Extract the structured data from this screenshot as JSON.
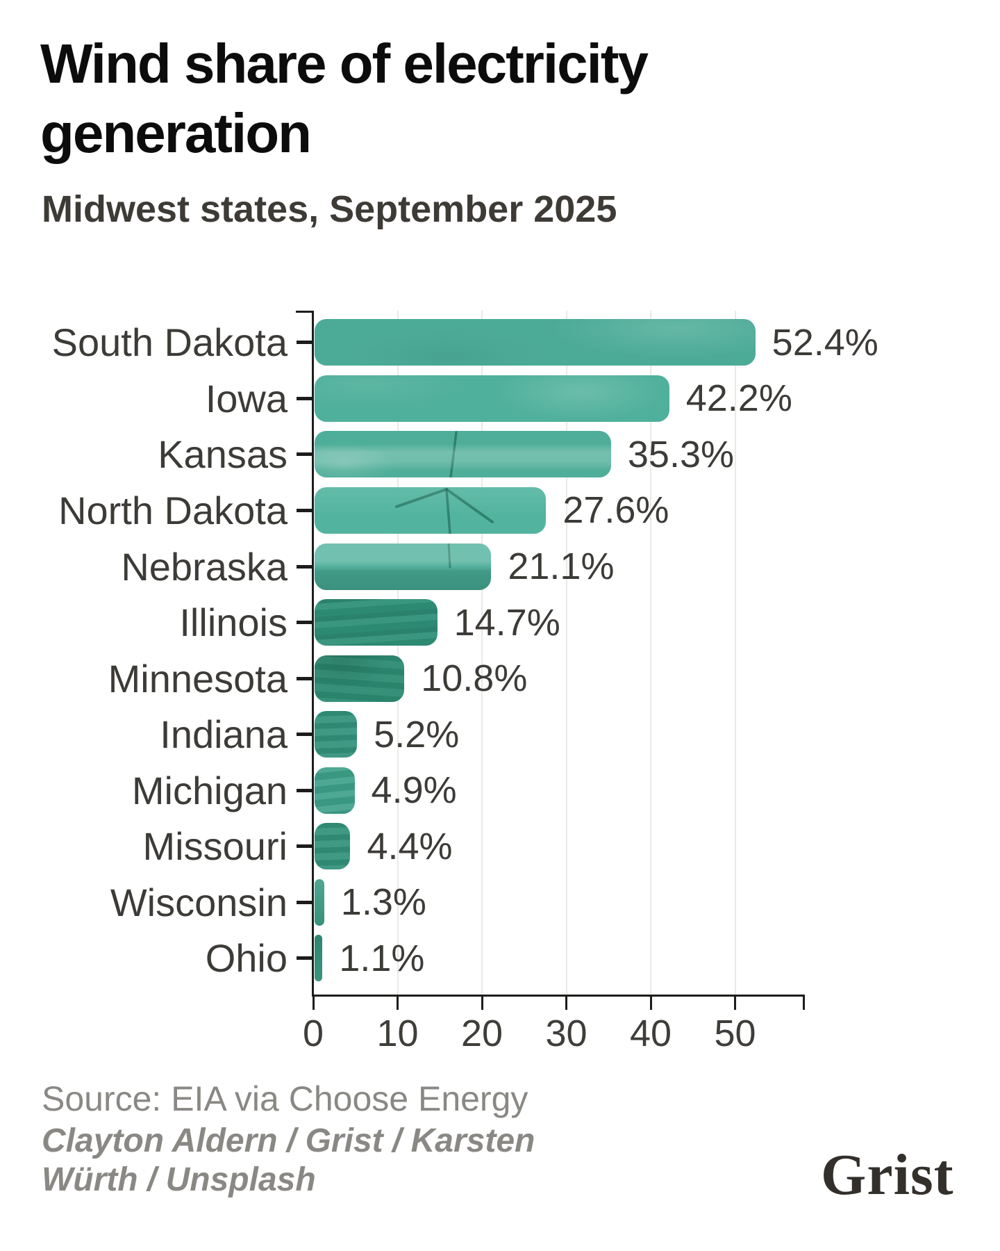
{
  "header": {
    "title": "Wind share of electricity generation",
    "subtitle": "Midwest states, September 2025"
  },
  "chart_data": {
    "type": "bar",
    "orientation": "horizontal",
    "title": "Wind share of electricity generation",
    "subtitle": "Midwest states, September 2025",
    "categories": [
      "South Dakota",
      "Iowa",
      "Kansas",
      "North Dakota",
      "Nebraska",
      "Illinois",
      "Minnesota",
      "Indiana",
      "Michigan",
      "Missouri",
      "Wisconsin",
      "Ohio"
    ],
    "values": [
      52.4,
      42.2,
      35.3,
      27.6,
      21.1,
      14.7,
      10.8,
      5.2,
      4.9,
      4.4,
      1.3,
      1.1
    ],
    "value_labels": [
      "52.4%",
      "42.2%",
      "35.3%",
      "27.6%",
      "21.1%",
      "14.7%",
      "10.8%",
      "5.2%",
      "4.9%",
      "4.4%",
      "1.3%",
      "1.1%"
    ],
    "unit": "%",
    "xlim": [
      0,
      58
    ],
    "xticks": [
      0,
      10,
      20,
      30,
      40,
      50
    ],
    "xtick_labels": [
      "0",
      "10",
      "20",
      "30",
      "40",
      "50"
    ],
    "grid": "vertical",
    "legend": "none",
    "bar_colors": [
      "#4cab97",
      "#4fb09b",
      "#4fae99",
      "#52b49f",
      "#4fb09b",
      "#2f8f77",
      "#2c8b72",
      "#33937b",
      "#3da089",
      "#33937b",
      "#3b9d85",
      "#2f8e76"
    ]
  },
  "colors": {
    "accent_teal": "#4cab97",
    "axis": "#1d1d1b",
    "grid": "#e9e9e7",
    "label_text": "#3d3b37",
    "title_text": "#0c0c0c",
    "subtitle_text": "#3e3b36",
    "muted_text": "#8a8884",
    "logo_text": "#33302b"
  },
  "footer": {
    "source": "Source: EIA via Choose Energy",
    "credit": "Clayton Aldern / Grist / Karsten Würth / Unsplash",
    "logo": "Grist"
  }
}
